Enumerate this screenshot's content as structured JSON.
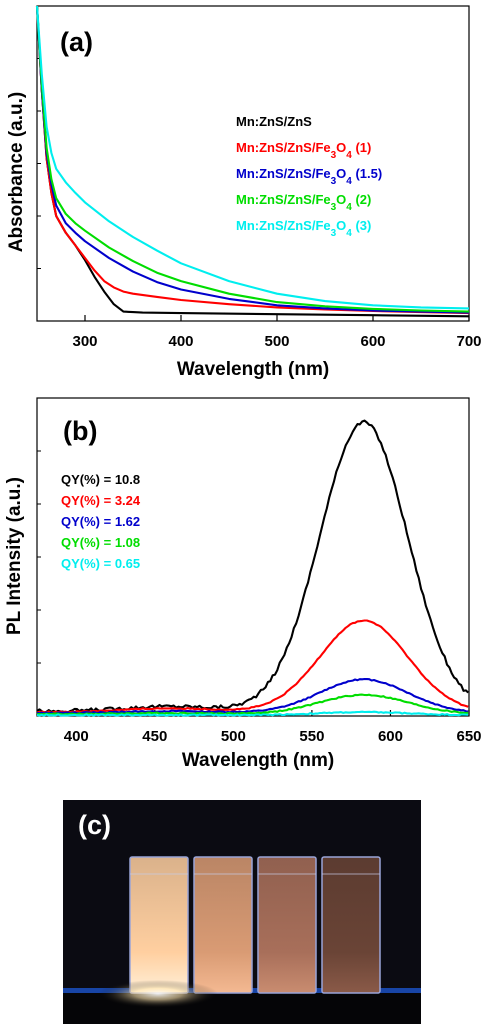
{
  "chart_data": [
    {
      "panel_label": "(a)",
      "type": "line",
      "xlabel": "Wavelength (nm)",
      "ylabel": "Absorbance (a.u.)",
      "xlim": [
        250,
        700
      ],
      "ylim": [
        0,
        3.0
      ],
      "xticks": [
        300,
        400,
        500,
        600,
        700
      ],
      "legend_position": "top-right",
      "series": [
        {
          "name": "Mn:ZnS/ZnS",
          "color": "#000000",
          "x": [
            250,
            255,
            260,
            265,
            270,
            280,
            290,
            300,
            310,
            320,
            330,
            340,
            350,
            360,
            400,
            500,
            600,
            700
          ],
          "y": [
            3.0,
            2.2,
            1.55,
            1.22,
            1.0,
            0.84,
            0.72,
            0.58,
            0.42,
            0.28,
            0.16,
            0.09,
            0.085,
            0.08,
            0.075,
            0.065,
            0.055,
            0.045
          ]
        },
        {
          "name": "Mn:ZnS/ZnS/Fe3O4 (1)",
          "color": "#ff0000",
          "x": [
            250,
            255,
            260,
            265,
            270,
            280,
            290,
            300,
            310,
            320,
            330,
            340,
            350,
            375,
            400,
            450,
            500,
            550,
            600,
            650,
            700
          ],
          "y": [
            3.0,
            2.2,
            1.55,
            1.22,
            1.0,
            0.84,
            0.72,
            0.6,
            0.48,
            0.38,
            0.32,
            0.28,
            0.26,
            0.23,
            0.2,
            0.16,
            0.13,
            0.11,
            0.095,
            0.085,
            0.075
          ]
        },
        {
          "name": "Mn:ZnS/ZnS/Fe3O4 (1.5)",
          "color": "#0000cc",
          "x": [
            250,
            255,
            260,
            265,
            270,
            280,
            290,
            300,
            325,
            350,
            375,
            400,
            450,
            500,
            550,
            600,
            650,
            700
          ],
          "y": [
            3.0,
            2.2,
            1.6,
            1.3,
            1.1,
            0.93,
            0.84,
            0.76,
            0.6,
            0.47,
            0.37,
            0.3,
            0.21,
            0.15,
            0.12,
            0.1,
            0.09,
            0.08
          ]
        },
        {
          "name": "Mn:ZnS/ZnS/Fe3O4 (2)",
          "color": "#00dd00",
          "x": [
            250,
            255,
            260,
            265,
            270,
            280,
            290,
            300,
            325,
            350,
            375,
            400,
            450,
            500,
            550,
            600,
            650,
            700
          ],
          "y": [
            3.0,
            2.25,
            1.65,
            1.35,
            1.17,
            1.02,
            0.93,
            0.86,
            0.7,
            0.57,
            0.46,
            0.38,
            0.26,
            0.18,
            0.14,
            0.115,
            0.1,
            0.09
          ]
        },
        {
          "name": "Mn:ZnS/ZnS/Fe3O4 (3)",
          "color": "#00eeee",
          "x": [
            250,
            255,
            260,
            265,
            270,
            280,
            290,
            300,
            325,
            350,
            375,
            400,
            450,
            500,
            550,
            600,
            650,
            700
          ],
          "y": [
            3.0,
            2.35,
            1.85,
            1.6,
            1.45,
            1.32,
            1.22,
            1.13,
            0.95,
            0.8,
            0.67,
            0.55,
            0.38,
            0.26,
            0.19,
            0.15,
            0.13,
            0.12
          ]
        }
      ]
    },
    {
      "panel_label": "(b)",
      "type": "line",
      "xlabel": "Wavelength (nm)",
      "ylabel": "PL Intensity (a.u.)",
      "xlim": [
        375,
        650
      ],
      "ylim": [
        0,
        330
      ],
      "xticks": [
        400,
        450,
        500,
        550,
        600,
        650
      ],
      "legend_position": "top-left",
      "series": [
        {
          "name": "QY(%) = 10.8",
          "color": "#000000",
          "peak_x": 583,
          "peak_y": 300,
          "sigma": 28,
          "baseline": 5,
          "bump": 5
        },
        {
          "name": "QY(%) = 3.24",
          "color": "#ff0000",
          "peak_x": 583,
          "peak_y": 95,
          "sigma": 28,
          "baseline": 4,
          "bump": 4
        },
        {
          "name": "QY(%) = 1.62",
          "color": "#0000cc",
          "peak_x": 583,
          "peak_y": 35,
          "sigma": 28,
          "baseline": 3,
          "bump": 2
        },
        {
          "name": "QY(%) = 1.08",
          "color": "#00dd00",
          "peak_x": 583,
          "peak_y": 20,
          "sigma": 28,
          "baseline": 2,
          "bump": 1
        },
        {
          "name": "QY(%) = 0.65",
          "color": "#00eeee",
          "peak_x": 583,
          "peak_y": 3,
          "sigma": 28,
          "baseline": 1,
          "bump": 0
        }
      ]
    }
  ],
  "photo": {
    "panel_label": "(c)",
    "vials": [
      {
        "glow": "#fff0d8",
        "mid": "#ffcfa0"
      },
      {
        "glow": "#f4b992",
        "mid": "#d99b74"
      },
      {
        "glow": "#c98c70",
        "mid": "#a86f5a"
      },
      {
        "glow": "#8a5a48",
        "mid": "#6a4436"
      }
    ]
  }
}
